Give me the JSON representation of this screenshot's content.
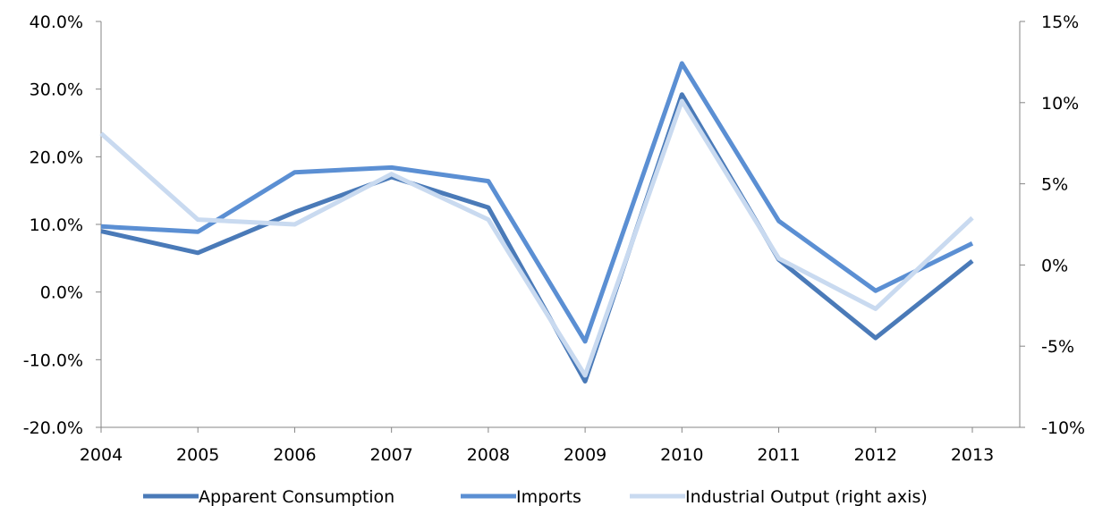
{
  "chart_data": {
    "type": "line",
    "categories": [
      "2004",
      "2005",
      "2006",
      "2007",
      "2008",
      "2009",
      "2010",
      "2011",
      "2012",
      "2013"
    ],
    "left_axis": {
      "min": -20,
      "max": 40,
      "step": 10,
      "tick_labels": [
        "-20.0%",
        "-10.0%",
        "0.0%",
        "10.0%",
        "20.0%",
        "30.0%",
        "40.0%"
      ]
    },
    "right_axis": {
      "min": -10,
      "max": 15,
      "step": 5,
      "tick_labels": [
        "-10%",
        "-5%",
        "0%",
        "5%",
        "10%",
        "15%"
      ]
    },
    "series": [
      {
        "name": "Apparent Consumption",
        "axis": "left",
        "color": "#4a7ab8",
        "values": [
          9.0,
          5.8,
          11.8,
          17.0,
          12.5,
          -13.2,
          29.2,
          4.8,
          -6.8,
          4.6
        ]
      },
      {
        "name": "Imports",
        "axis": "left",
        "color": "#5b8fd3",
        "values": [
          9.7,
          8.9,
          17.7,
          18.4,
          16.4,
          -7.3,
          33.8,
          10.5,
          0.2,
          7.2
        ]
      },
      {
        "name": "Industrial Output (right axis)",
        "axis": "right",
        "color": "#c9daf0",
        "values": [
          8.1,
          2.8,
          2.5,
          5.6,
          2.8,
          -6.8,
          10.1,
          0.4,
          -2.7,
          2.9
        ]
      }
    ],
    "grid": false,
    "legend_position": "bottom"
  }
}
